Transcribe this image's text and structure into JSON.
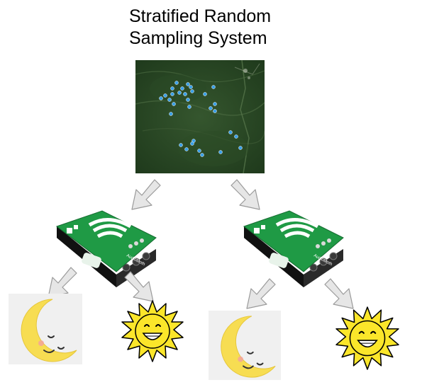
{
  "title": {
    "line1": "Stratified Random",
    "line2": "Sampling System"
  },
  "device": {
    "brand_label": "AudioMoth"
  },
  "colors": {
    "map_dark": "#1f3a1c",
    "map_mid": "#35562e",
    "pin": "#3aa0e8",
    "board_green": "#1f9a45",
    "board_dark": "#156b30",
    "case_black": "#1a1a1a",
    "arrow_fill": "#e6e6e6",
    "arrow_stroke": "#9a9a9a",
    "sun_yellow": "#fbe62a",
    "moon_yellow": "#f7dd52",
    "moon_bg": "#f0f0f0"
  },
  "icons": [
    "map-image",
    "down-arrow-icon",
    "audiomoth-device",
    "moon-icon",
    "sun-icon"
  ]
}
